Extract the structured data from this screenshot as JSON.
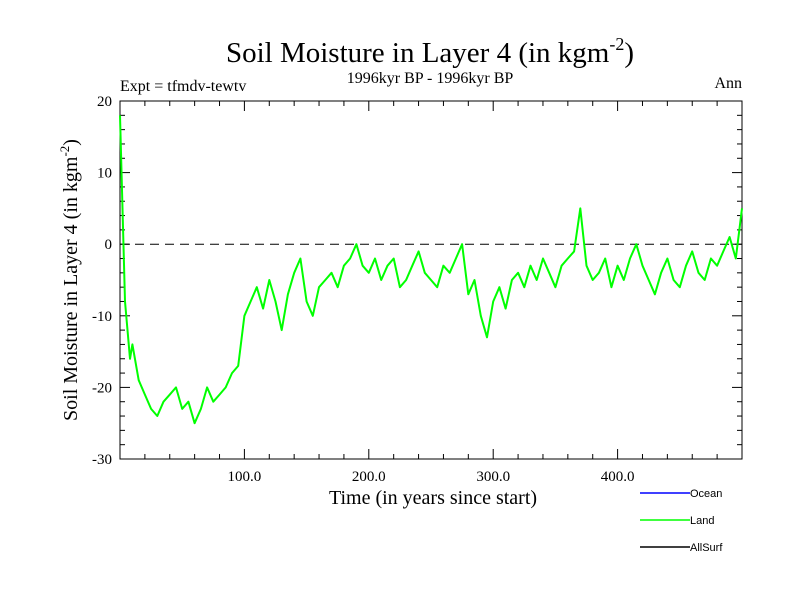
{
  "chart_data": {
    "type": "line",
    "title": {
      "main": "Soil Moisture in Layer 4 (in kgm",
      "sup": "-2",
      "close": ")"
    },
    "subtitle": "1996kyr BP - 1996kyr BP",
    "expt_label": "Expt = tfmdv-tewtv",
    "season_label": "Ann",
    "xlabel": "Time (in years since start)",
    "ylabel": {
      "main": "Soil Moisture in Layer 4 (in kgm",
      "sup": "-2",
      "close": ")"
    },
    "xlim": [
      0,
      500
    ],
    "ylim": [
      -30,
      20
    ],
    "xticks": [
      100,
      200,
      300,
      400
    ],
    "xtick_labels": [
      "100.0",
      "200.0",
      "300.0",
      "400.0"
    ],
    "yticks": [
      -30,
      -20,
      -10,
      0,
      10,
      20
    ],
    "ytick_labels": [
      "-30",
      "-20",
      "-10",
      "0",
      "10",
      "20"
    ],
    "reference_line": {
      "y": 0,
      "style": "dashed"
    },
    "legend": [
      {
        "name": "Ocean",
        "color": "#0000ff"
      },
      {
        "name": "Land",
        "color": "#00ff00"
      },
      {
        "name": "AllSurf",
        "color": "#000000"
      }
    ],
    "series": [
      {
        "name": "Land",
        "color": "#00ff00",
        "x": [
          0,
          2,
          4,
          6,
          8,
          10,
          15,
          20,
          25,
          30,
          35,
          40,
          45,
          50,
          55,
          60,
          65,
          70,
          75,
          80,
          85,
          90,
          95,
          100,
          105,
          110,
          115,
          120,
          125,
          130,
          135,
          140,
          145,
          150,
          155,
          160,
          165,
          170,
          175,
          180,
          185,
          190,
          195,
          200,
          205,
          210,
          215,
          220,
          225,
          230,
          235,
          240,
          245,
          250,
          255,
          260,
          265,
          270,
          275,
          280,
          285,
          290,
          295,
          300,
          305,
          310,
          315,
          320,
          325,
          330,
          335,
          340,
          345,
          350,
          355,
          360,
          365,
          370,
          375,
          380,
          385,
          390,
          395,
          400,
          405,
          410,
          415,
          420,
          425,
          430,
          435,
          440,
          445,
          450,
          455,
          460,
          465,
          470,
          475,
          480,
          485,
          490,
          495,
          500
        ],
        "values": [
          18,
          5,
          -8,
          -12,
          -16,
          -14,
          -19,
          -21,
          -23,
          -24,
          -22,
          -21,
          -20,
          -23,
          -22,
          -25,
          -23,
          -20,
          -22,
          -21,
          -20,
          -18,
          -17,
          -10,
          -8,
          -6,
          -9,
          -5,
          -8,
          -12,
          -7,
          -4,
          -2,
          -8,
          -10,
          -6,
          -5,
          -4,
          -6,
          -3,
          -2,
          0,
          -3,
          -4,
          -2,
          -5,
          -3,
          -2,
          -6,
          -5,
          -3,
          -1,
          -4,
          -5,
          -6,
          -3,
          -4,
          -2,
          0,
          -7,
          -5,
          -10,
          -13,
          -8,
          -6,
          -9,
          -5,
          -4,
          -6,
          -3,
          -5,
          -2,
          -4,
          -6,
          -3,
          -2,
          -1,
          5,
          -3,
          -5,
          -4,
          -2,
          -6,
          -3,
          -5,
          -2,
          0,
          -3,
          -5,
          -7,
          -4,
          -2,
          -5,
          -6,
          -3,
          -1,
          -4,
          -5,
          -2,
          -3,
          -1,
          1,
          -2,
          5
        ]
      }
    ]
  }
}
